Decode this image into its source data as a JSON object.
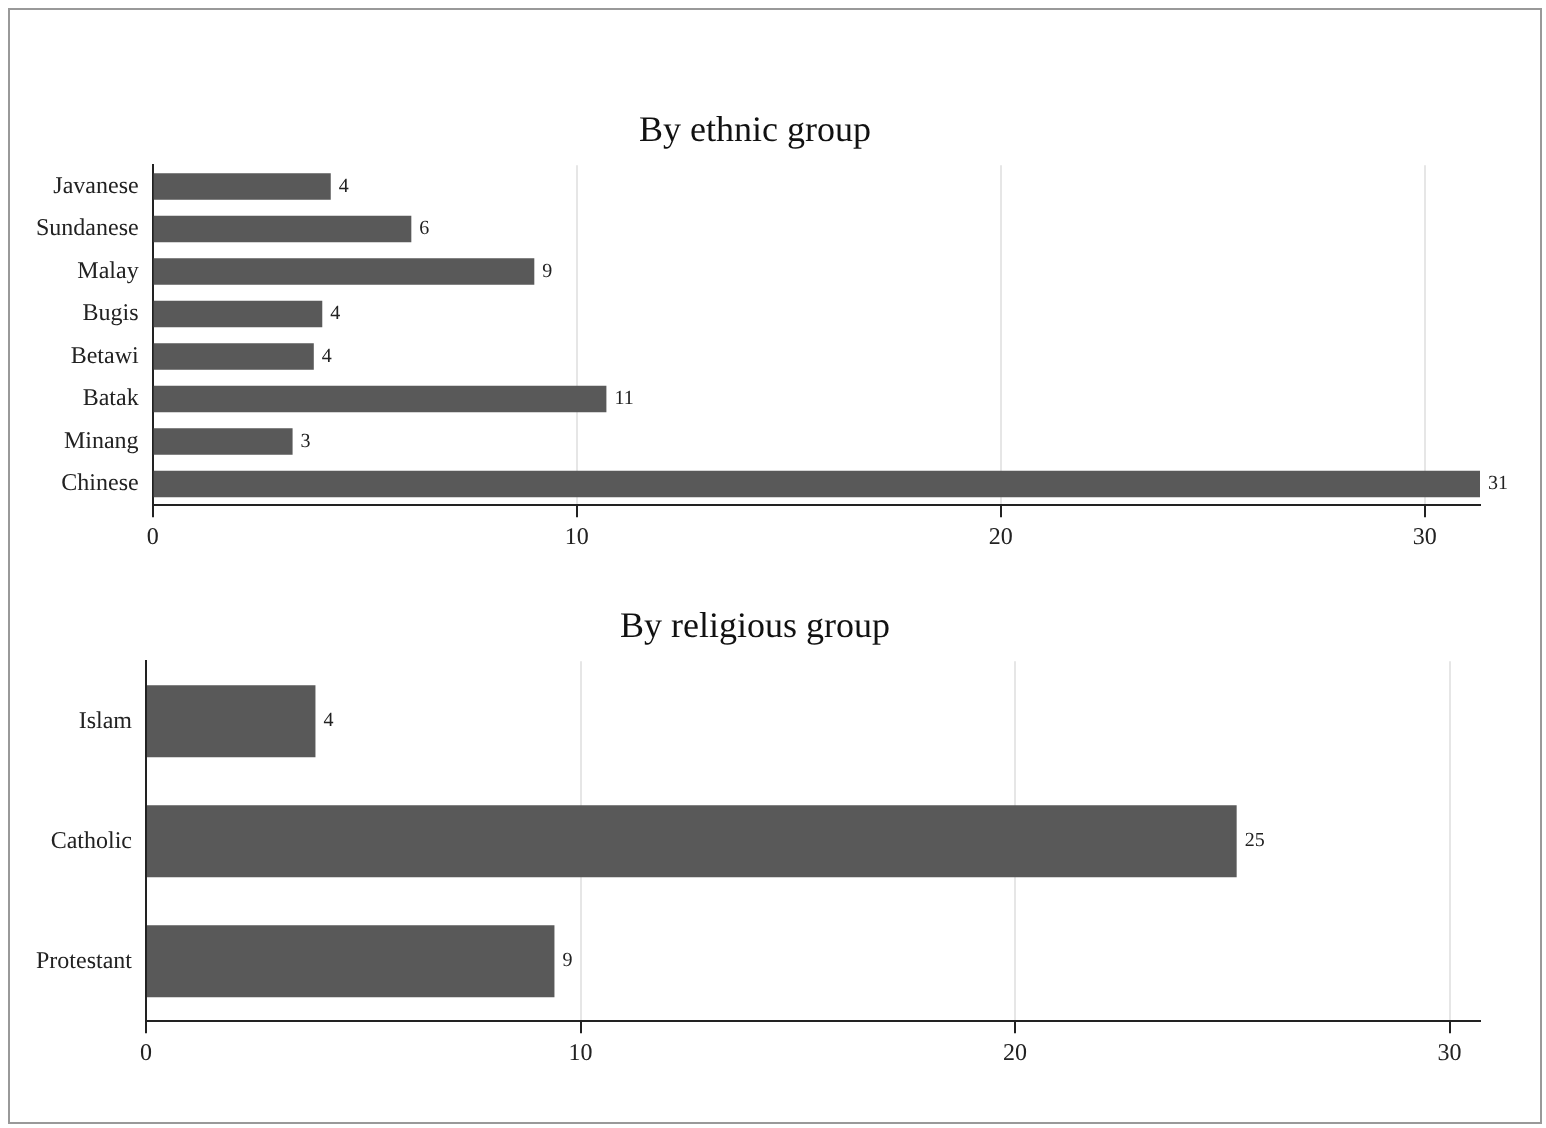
{
  "chart_data": [
    {
      "type": "bar",
      "orientation": "horizontal",
      "title": "By ethnic group",
      "categories": [
        "Javanese",
        "Sundanese",
        "Malay",
        "Bugis",
        "Betawi",
        "Batak",
        "Minang",
        "Chinese"
      ],
      "values": [
        4.2,
        6.1,
        9.0,
        4.0,
        3.8,
        10.7,
        3.3,
        31.3
      ],
      "value_labels": [
        "4",
        "6",
        "9",
        "4",
        "4",
        "11",
        "3",
        "31"
      ],
      "color": "#595959",
      "xlim": [
        0,
        31.3
      ],
      "xticks": [
        0,
        10,
        20,
        30
      ],
      "grid": "x",
      "legend": false
    },
    {
      "type": "bar",
      "orientation": "horizontal",
      "title": "By religious group",
      "categories": [
        "Islam",
        "Catholic",
        "Protestant"
      ],
      "values": [
        3.9,
        25.1,
        9.4
      ],
      "value_labels": [
        "4",
        "25",
        "9"
      ],
      "color": "#595959",
      "xlim": [
        0,
        30.7
      ],
      "xticks": [
        0,
        10,
        20,
        30
      ],
      "grid": "x",
      "legend": false
    }
  ]
}
